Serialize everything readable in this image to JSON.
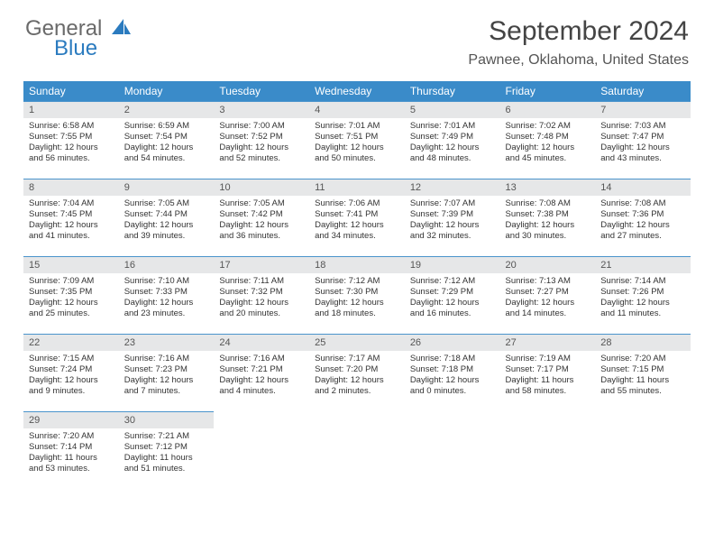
{
  "logo": {
    "word1": "General",
    "word2": "Blue"
  },
  "title": "September 2024",
  "location": "Pawnee, Oklahoma, United States",
  "colors": {
    "header_bg": "#3a8bc9",
    "header_text": "#ffffff",
    "daynum_bg": "#e6e7e8",
    "rule": "#4a94cc",
    "logo_gray": "#6a6a6a",
    "logo_blue": "#2b7bbf"
  },
  "day_headers": [
    "Sunday",
    "Monday",
    "Tuesday",
    "Wednesday",
    "Thursday",
    "Friday",
    "Saturday"
  ],
  "weeks": [
    [
      {
        "n": "1",
        "sr": "Sunrise: 6:58 AM",
        "ss": "Sunset: 7:55 PM",
        "d1": "Daylight: 12 hours",
        "d2": "and 56 minutes."
      },
      {
        "n": "2",
        "sr": "Sunrise: 6:59 AM",
        "ss": "Sunset: 7:54 PM",
        "d1": "Daylight: 12 hours",
        "d2": "and 54 minutes."
      },
      {
        "n": "3",
        "sr": "Sunrise: 7:00 AM",
        "ss": "Sunset: 7:52 PM",
        "d1": "Daylight: 12 hours",
        "d2": "and 52 minutes."
      },
      {
        "n": "4",
        "sr": "Sunrise: 7:01 AM",
        "ss": "Sunset: 7:51 PM",
        "d1": "Daylight: 12 hours",
        "d2": "and 50 minutes."
      },
      {
        "n": "5",
        "sr": "Sunrise: 7:01 AM",
        "ss": "Sunset: 7:49 PM",
        "d1": "Daylight: 12 hours",
        "d2": "and 48 minutes."
      },
      {
        "n": "6",
        "sr": "Sunrise: 7:02 AM",
        "ss": "Sunset: 7:48 PM",
        "d1": "Daylight: 12 hours",
        "d2": "and 45 minutes."
      },
      {
        "n": "7",
        "sr": "Sunrise: 7:03 AM",
        "ss": "Sunset: 7:47 PM",
        "d1": "Daylight: 12 hours",
        "d2": "and 43 minutes."
      }
    ],
    [
      {
        "n": "8",
        "sr": "Sunrise: 7:04 AM",
        "ss": "Sunset: 7:45 PM",
        "d1": "Daylight: 12 hours",
        "d2": "and 41 minutes."
      },
      {
        "n": "9",
        "sr": "Sunrise: 7:05 AM",
        "ss": "Sunset: 7:44 PM",
        "d1": "Daylight: 12 hours",
        "d2": "and 39 minutes."
      },
      {
        "n": "10",
        "sr": "Sunrise: 7:05 AM",
        "ss": "Sunset: 7:42 PM",
        "d1": "Daylight: 12 hours",
        "d2": "and 36 minutes."
      },
      {
        "n": "11",
        "sr": "Sunrise: 7:06 AM",
        "ss": "Sunset: 7:41 PM",
        "d1": "Daylight: 12 hours",
        "d2": "and 34 minutes."
      },
      {
        "n": "12",
        "sr": "Sunrise: 7:07 AM",
        "ss": "Sunset: 7:39 PM",
        "d1": "Daylight: 12 hours",
        "d2": "and 32 minutes."
      },
      {
        "n": "13",
        "sr": "Sunrise: 7:08 AM",
        "ss": "Sunset: 7:38 PM",
        "d1": "Daylight: 12 hours",
        "d2": "and 30 minutes."
      },
      {
        "n": "14",
        "sr": "Sunrise: 7:08 AM",
        "ss": "Sunset: 7:36 PM",
        "d1": "Daylight: 12 hours",
        "d2": "and 27 minutes."
      }
    ],
    [
      {
        "n": "15",
        "sr": "Sunrise: 7:09 AM",
        "ss": "Sunset: 7:35 PM",
        "d1": "Daylight: 12 hours",
        "d2": "and 25 minutes."
      },
      {
        "n": "16",
        "sr": "Sunrise: 7:10 AM",
        "ss": "Sunset: 7:33 PM",
        "d1": "Daylight: 12 hours",
        "d2": "and 23 minutes."
      },
      {
        "n": "17",
        "sr": "Sunrise: 7:11 AM",
        "ss": "Sunset: 7:32 PM",
        "d1": "Daylight: 12 hours",
        "d2": "and 20 minutes."
      },
      {
        "n": "18",
        "sr": "Sunrise: 7:12 AM",
        "ss": "Sunset: 7:30 PM",
        "d1": "Daylight: 12 hours",
        "d2": "and 18 minutes."
      },
      {
        "n": "19",
        "sr": "Sunrise: 7:12 AM",
        "ss": "Sunset: 7:29 PM",
        "d1": "Daylight: 12 hours",
        "d2": "and 16 minutes."
      },
      {
        "n": "20",
        "sr": "Sunrise: 7:13 AM",
        "ss": "Sunset: 7:27 PM",
        "d1": "Daylight: 12 hours",
        "d2": "and 14 minutes."
      },
      {
        "n": "21",
        "sr": "Sunrise: 7:14 AM",
        "ss": "Sunset: 7:26 PM",
        "d1": "Daylight: 12 hours",
        "d2": "and 11 minutes."
      }
    ],
    [
      {
        "n": "22",
        "sr": "Sunrise: 7:15 AM",
        "ss": "Sunset: 7:24 PM",
        "d1": "Daylight: 12 hours",
        "d2": "and 9 minutes."
      },
      {
        "n": "23",
        "sr": "Sunrise: 7:16 AM",
        "ss": "Sunset: 7:23 PM",
        "d1": "Daylight: 12 hours",
        "d2": "and 7 minutes."
      },
      {
        "n": "24",
        "sr": "Sunrise: 7:16 AM",
        "ss": "Sunset: 7:21 PM",
        "d1": "Daylight: 12 hours",
        "d2": "and 4 minutes."
      },
      {
        "n": "25",
        "sr": "Sunrise: 7:17 AM",
        "ss": "Sunset: 7:20 PM",
        "d1": "Daylight: 12 hours",
        "d2": "and 2 minutes."
      },
      {
        "n": "26",
        "sr": "Sunrise: 7:18 AM",
        "ss": "Sunset: 7:18 PM",
        "d1": "Daylight: 12 hours",
        "d2": "and 0 minutes."
      },
      {
        "n": "27",
        "sr": "Sunrise: 7:19 AM",
        "ss": "Sunset: 7:17 PM",
        "d1": "Daylight: 11 hours",
        "d2": "and 58 minutes."
      },
      {
        "n": "28",
        "sr": "Sunrise: 7:20 AM",
        "ss": "Sunset: 7:15 PM",
        "d1": "Daylight: 11 hours",
        "d2": "and 55 minutes."
      }
    ],
    [
      {
        "n": "29",
        "sr": "Sunrise: 7:20 AM",
        "ss": "Sunset: 7:14 PM",
        "d1": "Daylight: 11 hours",
        "d2": "and 53 minutes."
      },
      {
        "n": "30",
        "sr": "Sunrise: 7:21 AM",
        "ss": "Sunset: 7:12 PM",
        "d1": "Daylight: 11 hours",
        "d2": "and 51 minutes."
      },
      null,
      null,
      null,
      null,
      null
    ]
  ]
}
